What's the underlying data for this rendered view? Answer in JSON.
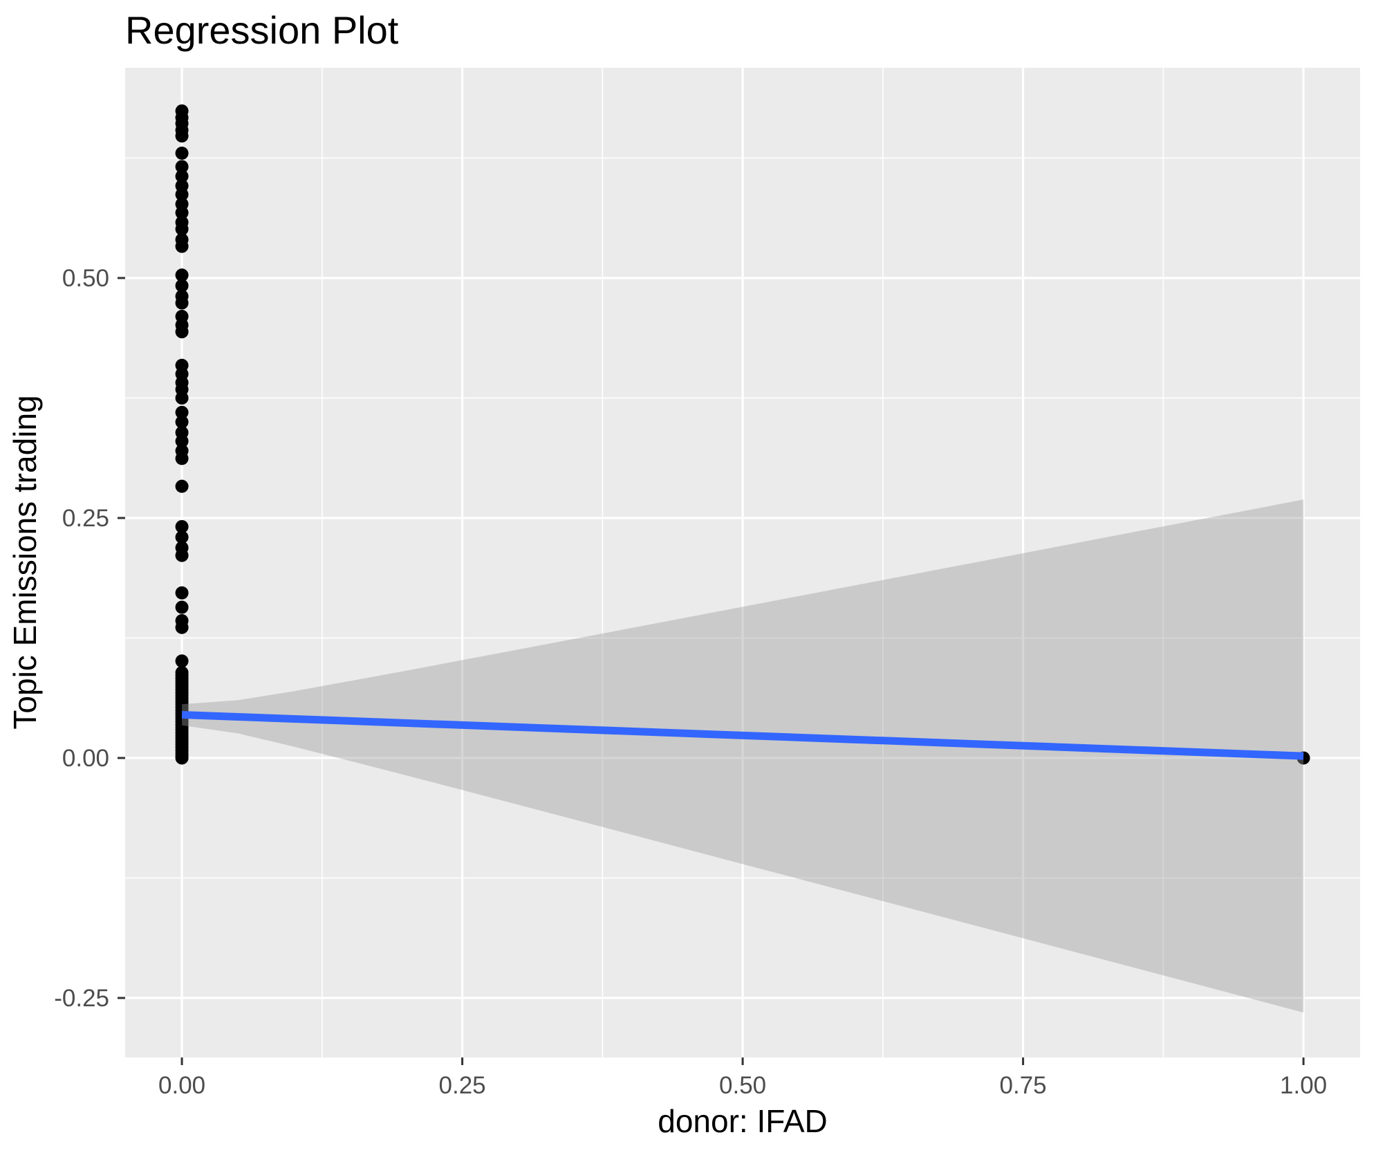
{
  "title": "Regression Plot",
  "colors": {
    "panel_bg": "#EBEBEB",
    "grid": "#FFFFFF",
    "point": "#000000",
    "regression_line": "#3366FF",
    "ribbon_fill": "#999999",
    "ribbon_alpha": 0.4,
    "tick_label": "#4D4D4D",
    "tick_mark": "#333333",
    "title_color": "#000000"
  },
  "chart_data": {
    "type": "scatter",
    "title": "Regression Plot",
    "xlabel": "donor: IFAD",
    "ylabel": "Topic Emissions trading",
    "grid": "on",
    "legend": "none",
    "xlim": [
      -0.0506,
      1.0505
    ],
    "ylim": [
      -0.312,
      0.719
    ],
    "x_ticks": [
      0,
      0.25,
      0.5,
      0.75,
      1
    ],
    "x_tick_labels": [
      "0.00",
      "0.25",
      "0.50",
      "0.75",
      "1.00"
    ],
    "x_minor_ticks": [
      0.125,
      0.375,
      0.625,
      0.875
    ],
    "y_ticks": [
      -0.25,
      0,
      0.25,
      0.5
    ],
    "y_tick_labels": [
      "-0.25",
      "0.00",
      "0.25",
      "0.50"
    ],
    "y_minor_ticks": [
      -0.125,
      0.125,
      0.375,
      0.625
    ],
    "series": [
      {
        "name": "observations",
        "marker": "filled-circle",
        "points": [
          [
            0,
            0.674
          ],
          [
            0,
            0.667
          ],
          [
            0,
            0.661
          ],
          [
            0,
            0.654
          ],
          [
            0,
            0.648
          ],
          [
            0,
            0.63
          ],
          [
            0,
            0.616
          ],
          [
            0,
            0.606
          ],
          [
            0,
            0.596
          ],
          [
            0,
            0.587
          ],
          [
            0,
            0.577
          ],
          [
            0,
            0.568
          ],
          [
            0,
            0.558
          ],
          [
            0,
            0.551
          ],
          [
            0,
            0.54
          ],
          [
            0,
            0.533
          ],
          [
            0,
            0.503
          ],
          [
            0,
            0.492
          ],
          [
            0,
            0.481
          ],
          [
            0,
            0.474
          ],
          [
            0,
            0.46
          ],
          [
            0,
            0.451
          ],
          [
            0,
            0.444
          ],
          [
            0,
            0.409
          ],
          [
            0,
            0.4
          ],
          [
            0,
            0.391
          ],
          [
            0,
            0.384
          ],
          [
            0,
            0.375
          ],
          [
            0,
            0.36
          ],
          [
            0,
            0.35
          ],
          [
            0,
            0.339
          ],
          [
            0,
            0.33
          ],
          [
            0,
            0.32
          ],
          [
            0,
            0.312
          ],
          [
            0,
            0.283
          ],
          [
            0,
            0.241
          ],
          [
            0,
            0.23
          ],
          [
            0,
            0.219
          ],
          [
            0,
            0.211
          ],
          [
            0,
            0.172
          ],
          [
            0,
            0.157
          ],
          [
            0,
            0.143
          ],
          [
            0,
            0.136
          ],
          [
            0,
            0.101
          ],
          [
            0,
            0.089
          ],
          [
            0,
            0.086
          ],
          [
            0,
            0.083
          ],
          [
            0,
            0.08
          ],
          [
            0,
            0.077
          ],
          [
            0,
            0.074
          ],
          [
            0,
            0.071
          ],
          [
            0,
            0.068
          ],
          [
            0,
            0.065
          ],
          [
            0,
            0.062
          ],
          [
            0,
            0.059
          ],
          [
            0,
            0.056
          ],
          [
            0,
            0.053
          ],
          [
            0,
            0.05
          ],
          [
            0,
            0.047
          ],
          [
            0,
            0.044
          ],
          [
            0,
            0.041
          ],
          [
            0,
            0.038
          ],
          [
            0,
            0.035
          ],
          [
            0,
            0.032
          ],
          [
            0,
            0.029
          ],
          [
            0,
            0.026
          ],
          [
            0,
            0.023
          ],
          [
            0,
            0.02
          ],
          [
            0,
            0.017
          ],
          [
            0,
            0.014
          ],
          [
            0,
            0.011
          ],
          [
            0,
            0.008
          ],
          [
            0,
            0.005
          ],
          [
            0,
            0.002
          ],
          [
            0,
            0.0
          ],
          [
            1,
            0.0
          ]
        ]
      }
    ],
    "regression_line": {
      "x": [
        0,
        1
      ],
      "y": [
        0.045,
        0.002
      ]
    },
    "ci_ribbon": {
      "x": [
        0,
        0.05,
        0.1,
        0.15,
        0.2,
        0.25,
        0.3,
        0.4,
        0.5,
        0.6,
        0.7,
        0.8,
        0.9,
        1.0
      ],
      "upper": [
        0.056,
        0.0602,
        0.0696,
        0.0802,
        0.0909,
        0.102,
        0.113,
        0.1352,
        0.1575,
        0.1798,
        0.2021,
        0.2245,
        0.2468,
        0.2692
      ],
      "lower": [
        0.034,
        0.0256,
        0.0118,
        -0.0031,
        -0.0181,
        -0.0334,
        -0.0488,
        -0.0796,
        -0.1105,
        -0.1414,
        -0.1723,
        -0.2033,
        -0.2342,
        -0.2652
      ]
    }
  }
}
